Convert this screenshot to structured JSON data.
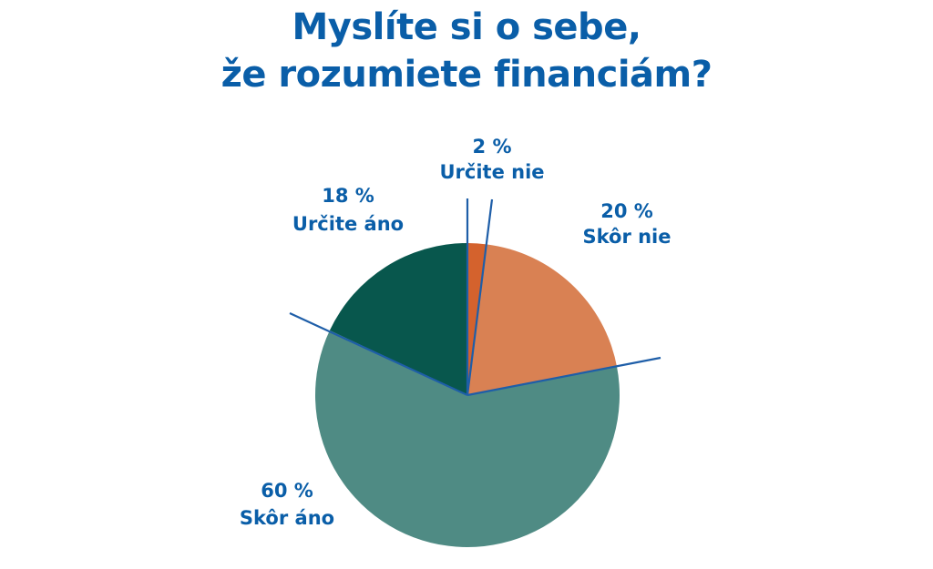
{
  "title_line1": "Myslíte si o sebe,",
  "title_line2": "že rozumiete financiám?",
  "colors": {
    "text": "#0a5ea8",
    "leader": "#1e5ea8",
    "urcite_nie": "#d4622d",
    "skor_nie": "#d98153",
    "skor_ano": "#4f8b84",
    "urcite_ano": "#08574d"
  },
  "chart_data": {
    "type": "pie",
    "title": "Myslíte si o sebe, že rozumiete financiám?",
    "unit": "%",
    "slices": [
      {
        "label": "Určite nie",
        "value": 2,
        "value_text": "2 %",
        "color": "#d4622d"
      },
      {
        "label": "Skôr nie",
        "value": 20,
        "value_text": "20 %",
        "color": "#d98153"
      },
      {
        "label": "Skôr áno",
        "value": 60,
        "value_text": "60 %",
        "color": "#4f8b84"
      },
      {
        "label": "Určite áno",
        "value": 18,
        "value_text": "18 %",
        "color": "#08574d"
      }
    ]
  }
}
